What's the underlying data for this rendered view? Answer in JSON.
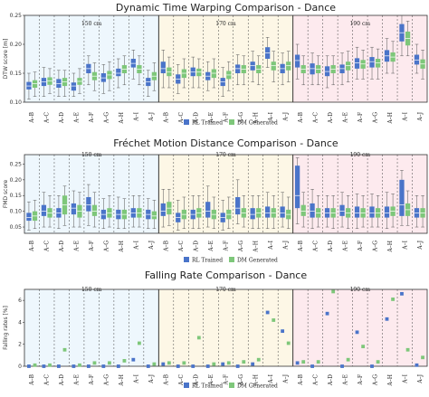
{
  "chart_data": [
    {
      "type": "box",
      "title": "Dynamic Time Warping Comparison - Dance",
      "ylabel": "DTW score [m]",
      "ylim": [
        0.1,
        0.25
      ],
      "yticks": [
        "0.10",
        "0.15",
        "0.20",
        "0.25"
      ],
      "groups": [
        "150 cm",
        "170 cm",
        "190 cm"
      ],
      "categories": [
        "A–B",
        "A–C",
        "A–D",
        "A–E",
        "A–F",
        "A–G",
        "A–H",
        "A–I",
        "A–J"
      ],
      "legend": [
        "RL Trained",
        "DM Generated"
      ],
      "series": [
        {
          "name": "RL Trained",
          "color": "#4a74c9",
          "boxes": [
            [
              0.105,
              0.122,
              0.128,
              0.135,
              0.15
            ],
            [
              0.11,
              0.128,
              0.135,
              0.142,
              0.16
            ],
            [
              0.11,
              0.125,
              0.132,
              0.14,
              0.155
            ],
            [
              0.11,
              0.12,
              0.128,
              0.134,
              0.15
            ],
            [
              0.13,
              0.15,
              0.158,
              0.166,
              0.18
            ],
            [
              0.115,
              0.135,
              0.142,
              0.15,
              0.165
            ],
            [
              0.125,
              0.145,
              0.15,
              0.158,
              0.175
            ],
            [
              0.14,
              0.16,
              0.167,
              0.175,
              0.19
            ],
            [
              0.11,
              0.128,
              0.135,
              0.142,
              0.155
            ],
            [
              0.125,
              0.15,
              0.158,
              0.17,
              0.19
            ],
            [
              0.115,
              0.132,
              0.14,
              0.148,
              0.165
            ],
            [
              0.125,
              0.145,
              0.152,
              0.16,
              0.178
            ],
            [
              0.12,
              0.138,
              0.145,
              0.152,
              0.17
            ],
            [
              0.11,
              0.128,
              0.135,
              0.142,
              0.16
            ],
            [
              0.13,
              0.15,
              0.158,
              0.165,
              0.182
            ],
            [
              0.135,
              0.155,
              0.163,
              0.17,
              0.188
            ],
            [
              0.16,
              0.175,
              0.185,
              0.195,
              0.212
            ],
            [
              0.13,
              0.15,
              0.158,
              0.166,
              0.185
            ],
            [
              0.14,
              0.16,
              0.172,
              0.182,
              0.2
            ],
            [
              0.13,
              0.148,
              0.158,
              0.167,
              0.185
            ],
            [
              0.125,
              0.145,
              0.153,
              0.162,
              0.18
            ],
            [
              0.13,
              0.15,
              0.158,
              0.165,
              0.185
            ],
            [
              0.14,
              0.158,
              0.168,
              0.176,
              0.195
            ],
            [
              0.14,
              0.16,
              0.17,
              0.178,
              0.195
            ],
            [
              0.15,
              0.17,
              0.18,
              0.19,
              0.21
            ],
            [
              0.18,
              0.205,
              0.22,
              0.235,
              0.25
            ],
            [
              0.15,
              0.165,
              0.173,
              0.182,
              0.2
            ]
          ]
        },
        {
          "name": "DM Generated",
          "color": "#7ec77a",
          "boxes": [
            [
              0.11,
              0.125,
              0.132,
              0.138,
              0.152
            ],
            [
              0.115,
              0.13,
              0.137,
              0.143,
              0.158
            ],
            [
              0.11,
              0.128,
              0.135,
              0.142,
              0.155
            ],
            [
              0.115,
              0.13,
              0.136,
              0.142,
              0.158
            ],
            [
              0.12,
              0.138,
              0.145,
              0.152,
              0.168
            ],
            [
              0.12,
              0.14,
              0.147,
              0.154,
              0.17
            ],
            [
              0.13,
              0.15,
              0.157,
              0.164,
              0.18
            ],
            [
              0.13,
              0.15,
              0.157,
              0.164,
              0.18
            ],
            [
              0.12,
              0.138,
              0.145,
              0.152,
              0.168
            ],
            [
              0.125,
              0.145,
              0.152,
              0.16,
              0.178
            ],
            [
              0.125,
              0.142,
              0.15,
              0.157,
              0.175
            ],
            [
              0.125,
              0.145,
              0.152,
              0.158,
              0.175
            ],
            [
              0.125,
              0.142,
              0.15,
              0.157,
              0.175
            ],
            [
              0.12,
              0.14,
              0.147,
              0.154,
              0.17
            ],
            [
              0.13,
              0.15,
              0.157,
              0.164,
              0.18
            ],
            [
              0.13,
              0.15,
              0.157,
              0.164,
              0.18
            ],
            [
              0.135,
              0.155,
              0.163,
              0.17,
              0.188
            ],
            [
              0.135,
              0.155,
              0.163,
              0.17,
              0.188
            ],
            [
              0.13,
              0.15,
              0.157,
              0.164,
              0.18
            ],
            [
              0.13,
              0.15,
              0.157,
              0.164,
              0.18
            ],
            [
              0.13,
              0.15,
              0.157,
              0.164,
              0.18
            ],
            [
              0.135,
              0.155,
              0.163,
              0.17,
              0.188
            ],
            [
              0.14,
              0.158,
              0.166,
              0.173,
              0.19
            ],
            [
              0.14,
              0.16,
              0.168,
              0.175,
              0.192
            ],
            [
              0.15,
              0.17,
              0.178,
              0.186,
              0.205
            ],
            [
              0.18,
              0.198,
              0.21,
              0.222,
              0.24
            ],
            [
              0.14,
              0.158,
              0.166,
              0.174,
              0.19
            ]
          ]
        }
      ]
    },
    {
      "type": "box",
      "title": "Fréchet Motion Distance Comparison - Dance",
      "ylabel": "FMD score",
      "ylim": [
        0.03,
        0.28
      ],
      "yticks": [
        "0.05",
        "0.10",
        "0.15",
        "0.20",
        "0.25"
      ],
      "groups": [
        "150 cm",
        "170 cm",
        "190 cm"
      ],
      "categories": [
        "A–B",
        "A–C",
        "A–D",
        "A–E",
        "A–F",
        "A–G",
        "A–H",
        "A–I",
        "A–J"
      ],
      "legend": [
        "RL Trained",
        "DM Generated"
      ],
      "series": [
        {
          "name": "RL Trained",
          "color": "#4a74c9",
          "boxes": [
            [
              0.04,
              0.07,
              0.08,
              0.095,
              0.13
            ],
            [
              0.05,
              0.085,
              0.1,
              0.12,
              0.16
            ],
            [
              0.045,
              0.08,
              0.095,
              0.11,
              0.15
            ],
            [
              0.05,
              0.09,
              0.11,
              0.125,
              0.165
            ],
            [
              0.055,
              0.1,
              0.12,
              0.145,
              0.185
            ],
            [
              0.045,
              0.075,
              0.09,
              0.105,
              0.14
            ],
            [
              0.045,
              0.075,
              0.09,
              0.105,
              0.145
            ],
            [
              0.05,
              0.08,
              0.095,
              0.11,
              0.15
            ],
            [
              0.045,
              0.075,
              0.09,
              0.105,
              0.14
            ],
            [
              0.05,
              0.085,
              0.1,
              0.125,
              0.17
            ],
            [
              0.04,
              0.065,
              0.08,
              0.095,
              0.135
            ],
            [
              0.045,
              0.075,
              0.09,
              0.105,
              0.15
            ],
            [
              0.05,
              0.08,
              0.1,
              0.13,
              0.18
            ],
            [
              0.04,
              0.065,
              0.08,
              0.095,
              0.135
            ],
            [
              0.06,
              0.09,
              0.11,
              0.145,
              0.2
            ],
            [
              0.045,
              0.075,
              0.09,
              0.11,
              0.15
            ],
            [
              0.045,
              0.08,
              0.095,
              0.115,
              0.16
            ],
            [
              0.05,
              0.08,
              0.095,
              0.115,
              0.16
            ],
            [
              0.06,
              0.11,
              0.15,
              0.245,
              0.27
            ],
            [
              0.045,
              0.08,
              0.1,
              0.125,
              0.17
            ],
            [
              0.05,
              0.08,
              0.095,
              0.11,
              0.15
            ],
            [
              0.05,
              0.085,
              0.1,
              0.12,
              0.16
            ],
            [
              0.045,
              0.08,
              0.095,
              0.115,
              0.155
            ],
            [
              0.05,
              0.08,
              0.095,
              0.115,
              0.155
            ],
            [
              0.045,
              0.08,
              0.095,
              0.115,
              0.16
            ],
            [
              0.055,
              0.085,
              0.12,
              0.2,
              0.23
            ],
            [
              0.05,
              0.08,
              0.095,
              0.11,
              0.15
            ]
          ]
        },
        {
          "name": "DM Generated",
          "color": "#7ec77a",
          "boxes": [
            [
              0.045,
              0.07,
              0.085,
              0.1,
              0.135
            ],
            [
              0.05,
              0.08,
              0.095,
              0.11,
              0.15
            ],
            [
              0.055,
              0.09,
              0.12,
              0.15,
              0.18
            ],
            [
              0.05,
              0.08,
              0.1,
              0.12,
              0.16
            ],
            [
              0.05,
              0.085,
              0.1,
              0.12,
              0.16
            ],
            [
              0.05,
              0.08,
              0.095,
              0.11,
              0.15
            ],
            [
              0.045,
              0.075,
              0.09,
              0.105,
              0.14
            ],
            [
              0.05,
              0.08,
              0.095,
              0.11,
              0.15
            ],
            [
              0.045,
              0.075,
              0.085,
              0.1,
              0.135
            ],
            [
              0.055,
              0.09,
              0.11,
              0.13,
              0.17
            ],
            [
              0.045,
              0.075,
              0.09,
              0.105,
              0.145
            ],
            [
              0.045,
              0.08,
              0.095,
              0.11,
              0.15
            ],
            [
              0.045,
              0.075,
              0.09,
              0.105,
              0.145
            ],
            [
              0.045,
              0.075,
              0.09,
              0.105,
              0.145
            ],
            [
              0.05,
              0.08,
              0.095,
              0.11,
              0.15
            ],
            [
              0.045,
              0.08,
              0.095,
              0.11,
              0.15
            ],
            [
              0.045,
              0.08,
              0.095,
              0.11,
              0.15
            ],
            [
              0.045,
              0.075,
              0.09,
              0.105,
              0.145
            ],
            [
              0.05,
              0.085,
              0.1,
              0.12,
              0.16
            ],
            [
              0.05,
              0.08,
              0.095,
              0.11,
              0.15
            ],
            [
              0.045,
              0.08,
              0.095,
              0.11,
              0.15
            ],
            [
              0.045,
              0.08,
              0.095,
              0.11,
              0.15
            ],
            [
              0.05,
              0.08,
              0.095,
              0.11,
              0.15
            ],
            [
              0.05,
              0.08,
              0.095,
              0.11,
              0.15
            ],
            [
              0.05,
              0.085,
              0.1,
              0.115,
              0.155
            ],
            [
              0.055,
              0.085,
              0.105,
              0.125,
              0.165
            ],
            [
              0.05,
              0.08,
              0.095,
              0.11,
              0.15
            ]
          ]
        }
      ]
    },
    {
      "type": "scatter",
      "title": "Falling Rate Comparison - Dance",
      "ylabel": "Falling rates [%]",
      "ylim": [
        0,
        7
      ],
      "yticks": [
        "0",
        "2",
        "4",
        "6"
      ],
      "groups": [
        "150 cm",
        "170 cm",
        "190 cm"
      ],
      "categories": [
        "A–B",
        "A–C",
        "A–D",
        "A–E",
        "A–F",
        "A–G",
        "A–H",
        "A–I",
        "A–J"
      ],
      "legend": [
        "RL Trained",
        "DM Generated"
      ],
      "series": [
        {
          "name": "RL Trained",
          "color": "#4a74c9",
          "values": [
            0.0,
            0.0,
            0.0,
            0.0,
            0.0,
            0.0,
            0.0,
            0.6,
            0.0,
            0.2,
            0.0,
            0.0,
            0.0,
            0.2,
            0.0,
            0.2,
            4.9,
            3.2,
            0.3,
            0.0,
            4.8,
            0.0,
            3.1,
            0.0,
            4.3,
            6.6,
            0.1
          ]
        },
        {
          "name": "DM Generated",
          "color": "#7ec77a",
          "values": [
            0.1,
            0.1,
            1.5,
            0.1,
            0.3,
            0.3,
            0.5,
            2.1,
            0.2,
            0.3,
            0.3,
            2.6,
            0.2,
            0.3,
            0.4,
            0.6,
            4.2,
            2.1,
            0.4,
            0.4,
            6.8,
            0.6,
            1.8,
            0.4,
            6.1,
            1.5,
            0.8
          ]
        }
      ]
    }
  ]
}
